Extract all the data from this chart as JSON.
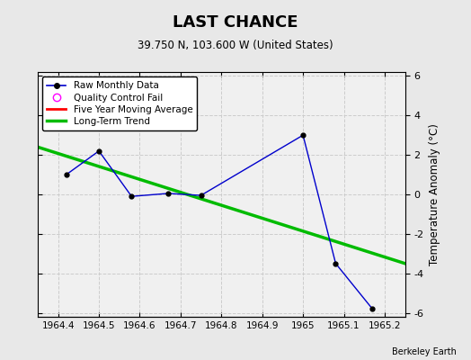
{
  "title": "LAST CHANCE",
  "subtitle": "39.750 N, 103.600 W (United States)",
  "ylabel": "Temperature Anomaly (°C)",
  "watermark": "Berkeley Earth",
  "xlim": [
    1964.35,
    1965.25
  ],
  "ylim": [
    -6.2,
    6.2
  ],
  "xticks": [
    1964.4,
    1964.5,
    1964.6,
    1964.7,
    1964.8,
    1964.9,
    1965.0,
    1965.1,
    1965.2
  ],
  "xtick_labels": [
    "1964.4",
    "1964.5",
    "1964.6",
    "1964.7",
    "1964.8",
    "1964.9",
    "1965",
    "1965.1",
    "1965.2"
  ],
  "yticks": [
    -6,
    -4,
    -2,
    0,
    2,
    4,
    6
  ],
  "raw_x": [
    1964.42,
    1964.5,
    1964.58,
    1964.67,
    1964.75,
    1965.0,
    1965.08,
    1965.17
  ],
  "raw_y": [
    1.0,
    2.2,
    -0.1,
    0.05,
    -0.05,
    3.0,
    -3.5,
    -5.8
  ],
  "trend_x": [
    1964.35,
    1965.25
  ],
  "trend_y": [
    2.4,
    -3.5
  ],
  "raw_color": "#0000cc",
  "trend_color": "#00bb00",
  "moving_avg_color": "#ff0000",
  "qc_fail_color": "#ff00ff",
  "background_color": "#e8e8e8",
  "plot_bg_color": "#f0f0f0",
  "grid_color": "#cccccc",
  "legend_labels": [
    "Raw Monthly Data",
    "Quality Control Fail",
    "Five Year Moving Average",
    "Long-Term Trend"
  ]
}
